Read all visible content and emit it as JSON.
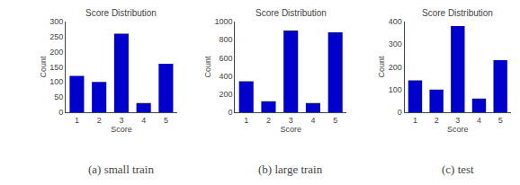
{
  "chart_data": [
    {
      "type": "bar",
      "title": "Score Distribution",
      "xlabel": "Score",
      "ylabel": "Count",
      "categories": [
        "1",
        "2",
        "3",
        "4",
        "5"
      ],
      "values": [
        120,
        100,
        260,
        30,
        160
      ],
      "color": "#0000CC",
      "ylim": [
        0,
        300
      ],
      "yticks": [
        0,
        50,
        100,
        150,
        200,
        250,
        300
      ],
      "grid": false,
      "annotations": [
        "(a) small train"
      ]
    },
    {
      "type": "bar",
      "title": "Score Distribution",
      "xlabel": "Score",
      "ylabel": "Count",
      "categories": [
        "1",
        "2",
        "3",
        "4",
        "5"
      ],
      "values": [
        340,
        120,
        900,
        100,
        880
      ],
      "color": "#0000CC",
      "ylim": [
        0,
        1000
      ],
      "yticks": [
        0,
        200,
        400,
        600,
        800,
        1000
      ],
      "grid": false,
      "annotations": [
        "(b) large train"
      ]
    },
    {
      "type": "bar",
      "title": "Score Distribution",
      "xlabel": "Score",
      "ylabel": "Count",
      "categories": [
        "1",
        "2",
        "3",
        "4",
        "5"
      ],
      "values": [
        140,
        100,
        380,
        60,
        230
      ],
      "color": "#0000CC",
      "ylim": [
        0,
        400
      ],
      "yticks": [
        0,
        100,
        200,
        300,
        400
      ],
      "grid": false,
      "annotations": [
        "(c) test"
      ]
    }
  ]
}
